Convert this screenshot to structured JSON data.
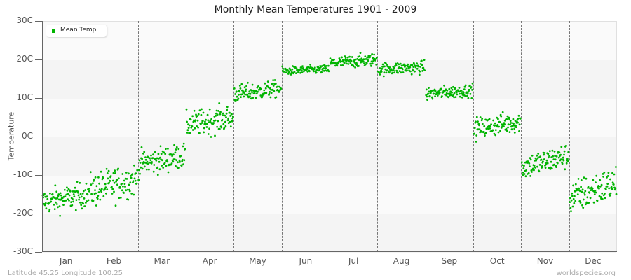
{
  "chart_data": {
    "type": "scatter",
    "title": "Monthly Mean Temperatures 1901 - 2009",
    "xlabel": "",
    "ylabel": "Temperature",
    "ylim": [
      -30,
      30
    ],
    "yticks": [
      "30C",
      "20C",
      "10C",
      "0C",
      "-10C",
      "-20C",
      "-30C"
    ],
    "ytick_values": [
      30,
      20,
      10,
      0,
      -10,
      -20,
      -30
    ],
    "categories": [
      "Jan",
      "Feb",
      "Mar",
      "Apr",
      "May",
      "Jun",
      "Jul",
      "Aug",
      "Sep",
      "Oct",
      "Nov",
      "Dec"
    ],
    "years": [
      1901,
      2009
    ],
    "grid": "alternating horizontal bands, dashed vertical month separators",
    "legend": {
      "position": "top-left",
      "entries": [
        "Mean Temp"
      ]
    },
    "series": [
      {
        "name": "Mean Temp",
        "color": "#00b400",
        "monthly_summary": [
          {
            "month": "Jan",
            "mean_start": -17,
            "mean_end": -15,
            "spread": 3
          },
          {
            "month": "Feb",
            "mean_start": -14,
            "mean_end": -11,
            "spread": 4
          },
          {
            "month": "Mar",
            "mean_start": -7,
            "mean_end": -5,
            "spread": 3
          },
          {
            "month": "Apr",
            "mean_start": 3,
            "mean_end": 5,
            "spread": 3
          },
          {
            "month": "May",
            "mean_start": 11,
            "mean_end": 12.5,
            "spread": 2
          },
          {
            "month": "Jun",
            "mean_start": 17,
            "mean_end": 17.5,
            "spread": 1
          },
          {
            "month": "Jul",
            "mean_start": 19,
            "mean_end": 20,
            "spread": 1.5
          },
          {
            "month": "Aug",
            "mean_start": 17.5,
            "mean_end": 18,
            "spread": 1.5
          },
          {
            "month": "Sep",
            "mean_start": 11,
            "mean_end": 12,
            "spread": 1.5
          },
          {
            "month": "Oct",
            "mean_start": 2,
            "mean_end": 4,
            "spread": 2.5
          },
          {
            "month": "Nov",
            "mean_start": -8,
            "mean_end": -5,
            "spread": 3
          },
          {
            "month": "Dec",
            "mean_start": -16,
            "mean_end": -12,
            "spread": 4
          }
        ]
      }
    ]
  },
  "footer": {
    "location": "Latitude 45.25 Longitude 100.25",
    "source": "worldspecies.org"
  }
}
